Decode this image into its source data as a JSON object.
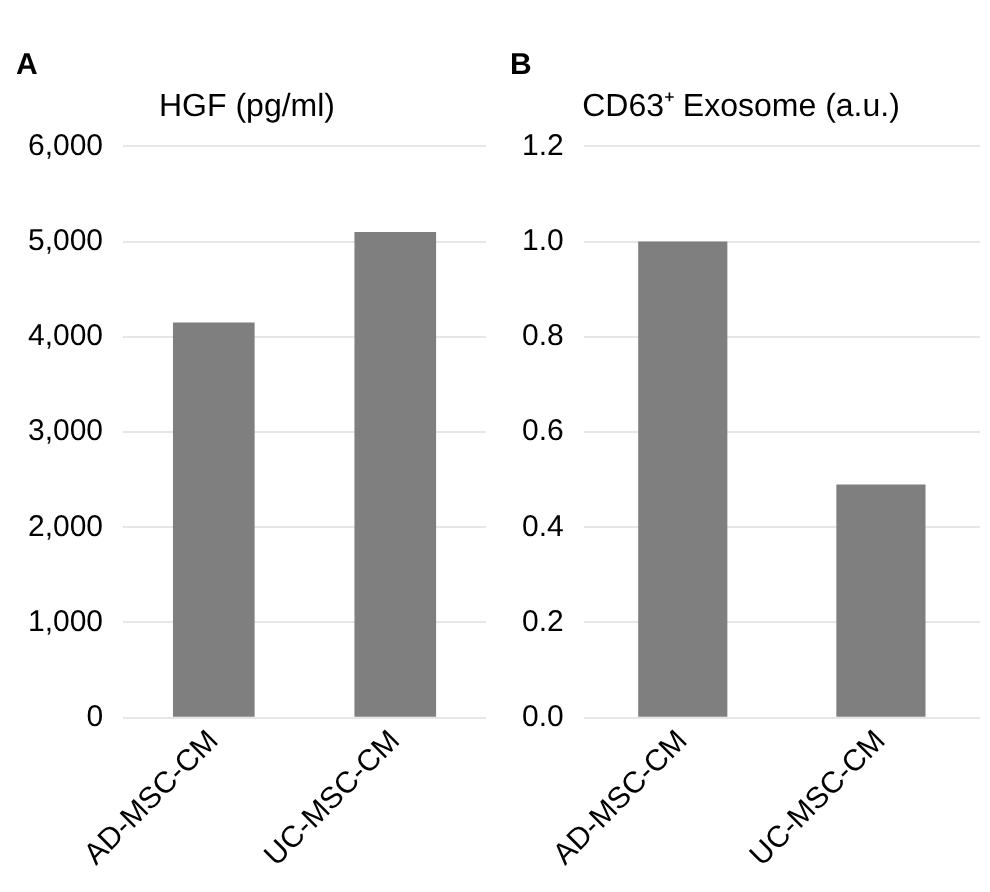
{
  "chart_data": [
    {
      "type": "bar",
      "title": "HGF (pg/ml)",
      "annotations": [
        "A"
      ],
      "categories": [
        "AD-MSC-CM",
        "UC-MSC-CM"
      ],
      "values": [
        4150,
        5100
      ],
      "color": "#7f7f7f",
      "ylim": [
        0,
        6000
      ],
      "yticks": [
        0,
        {
          "value": 1000,
          "label": "1,000"
        },
        {
          "value": 2000,
          "label": "2,000"
        },
        {
          "value": 3000,
          "label": "3,000"
        },
        {
          "value": 4000,
          "label": "4,000"
        },
        {
          "value": 5000,
          "label": "5,000"
        },
        {
          "value": 6000,
          "label": "6,000"
        }
      ],
      "grid": "y"
    },
    {
      "type": "bar",
      "title": "CD63⁺ Exosome (a.u.)",
      "annotations": [
        "B"
      ],
      "categories": [
        "AD-MSC-CM",
        "UC-MSC-CM"
      ],
      "values": [
        1.0,
        0.49
      ],
      "color": "#7f7f7f",
      "ylim": [
        0,
        1.2
      ],
      "yticks": [
        {
          "value": 0,
          "label": "0.0"
        },
        0.2,
        0.4,
        0.6,
        0.8,
        {
          "value": 1.0,
          "label": "1.0"
        },
        1.2
      ],
      "grid": "y"
    }
  ]
}
